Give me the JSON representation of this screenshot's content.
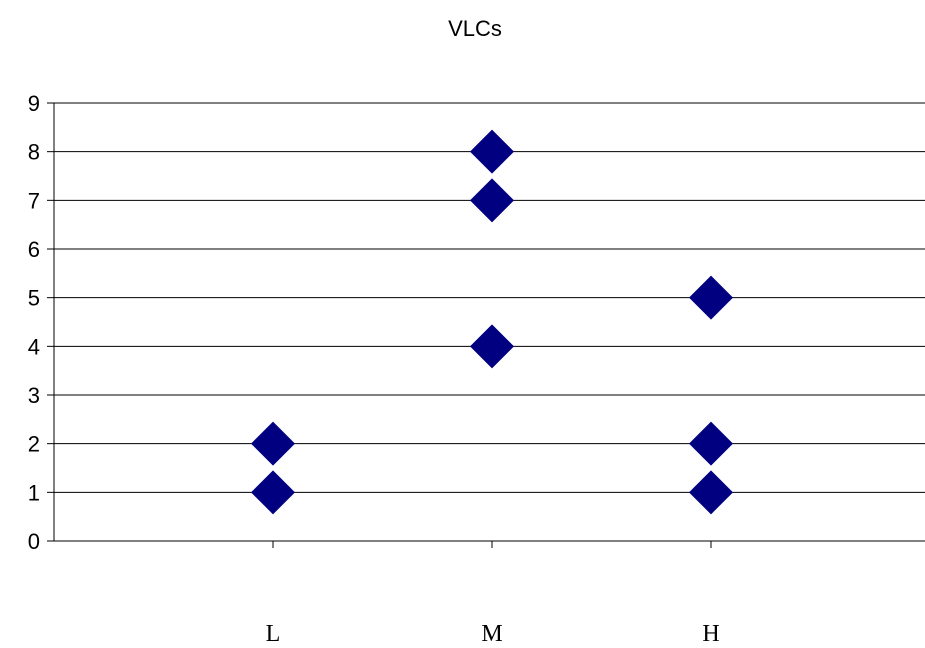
{
  "chart_data": {
    "type": "scatter",
    "title": "VLCs",
    "xlabel": "",
    "ylabel": "",
    "categories": [
      "L",
      "M",
      "H"
    ],
    "ylim": [
      0,
      9
    ],
    "yticks": [
      0,
      1,
      2,
      3,
      4,
      5,
      6,
      7,
      8,
      9
    ],
    "grid": true,
    "legend": "none",
    "series": [
      {
        "marker": "diamond",
        "color": "#000080",
        "points": [
          {
            "x": "L",
            "y": 1
          },
          {
            "x": "L",
            "y": 2
          },
          {
            "x": "M",
            "y": 4
          },
          {
            "x": "M",
            "y": 7
          },
          {
            "x": "M",
            "y": 8
          },
          {
            "x": "H",
            "y": 1
          },
          {
            "x": "H",
            "y": 2
          },
          {
            "x": "H",
            "y": 5
          }
        ]
      }
    ]
  }
}
